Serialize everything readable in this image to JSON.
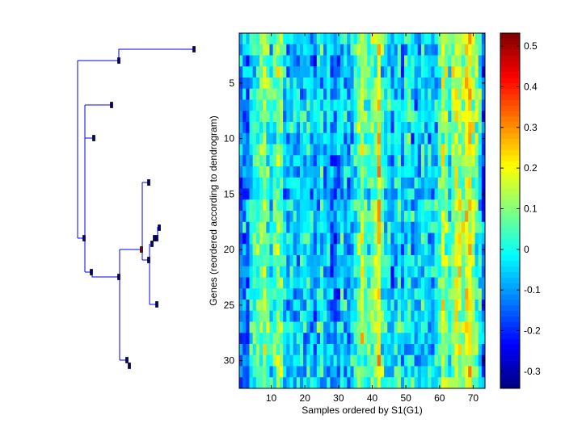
{
  "chart_data": [
    {
      "type": "dendrogram",
      "orientation": "left",
      "leaf_count": 32,
      "color": "#0000ff"
    },
    {
      "type": "heatmap",
      "xlabel": "Samples ordered by S1(G1)",
      "ylabel": "Genes (reordered according to dendrogram)",
      "xlim": [
        0.5,
        73.5
      ],
      "ylim": [
        0.5,
        32.5
      ],
      "rows": 32,
      "columns": 73,
      "xticks": [
        10,
        20,
        30,
        40,
        50,
        60,
        70
      ],
      "xtick_labels": [
        "10",
        "20",
        "30",
        "40",
        "50",
        "60",
        "70"
      ],
      "yticks": [
        5,
        10,
        15,
        20,
        25,
        30
      ],
      "ytick_labels": [
        "5",
        "10",
        "15",
        "20",
        "25",
        "30"
      ],
      "colormap": "jet",
      "column_profile": [
        -0.12,
        -0.1,
        -0.12,
        -0.02,
        0.02,
        0.03,
        0.08,
        0.12,
        0.05,
        -0.02,
        0.04,
        0.1,
        0.06,
        -0.04,
        -0.06,
        -0.03,
        -0.05,
        -0.06,
        -0.03,
        -0.04,
        -0.02,
        -0.06,
        -0.1,
        -0.03,
        -0.02,
        -0.08,
        -0.04,
        -0.1,
        -0.12,
        -0.08,
        -0.02,
        -0.05,
        -0.08,
        -0.06,
        0.0,
        0.06,
        0.14,
        0.05,
        0.02,
        0.06,
        0.12,
        0.22,
        0.04,
        -0.02,
        -0.04,
        -0.1,
        0.0,
        0.02,
        -0.08,
        -0.02,
        0.02,
        -0.05,
        -0.06,
        -0.04,
        0.0,
        -0.05,
        -0.04,
        -0.08,
        -0.02,
        0.03,
        0.15,
        0.1,
        0.02,
        0.12,
        0.18,
        0.14,
        0.1,
        0.2,
        0.24,
        0.12,
        0.08,
        0.0,
        -0.15
      ],
      "row_offsets": [
        0.02,
        0.0,
        -0.03,
        0.0,
        -0.01,
        0.01,
        0.01,
        0.02,
        0.0,
        -0.02,
        0.0,
        -0.04,
        -0.03,
        -0.02,
        -0.05,
        0.0,
        0.0,
        0.01,
        0.0,
        -0.01,
        0.0,
        -0.01,
        -0.02,
        0.0,
        0.0,
        0.0,
        0.01,
        0.0,
        -0.01,
        0.0,
        0.0,
        0.01
      ],
      "noise_amplitude": 0.09,
      "noise_seed": 12345,
      "colorbar": {
        "clim": [
          -0.342,
          0.532
        ],
        "ticks": [
          -0.3,
          -0.2,
          -0.1,
          0,
          0.1,
          0.2,
          0.3,
          0.4,
          0.5
        ],
        "tick_labels": [
          "-0.3",
          "-0.2",
          "-0.1",
          "0",
          "0.1",
          "0.2",
          "0.3",
          "0.4",
          "0.5"
        ]
      }
    }
  ]
}
